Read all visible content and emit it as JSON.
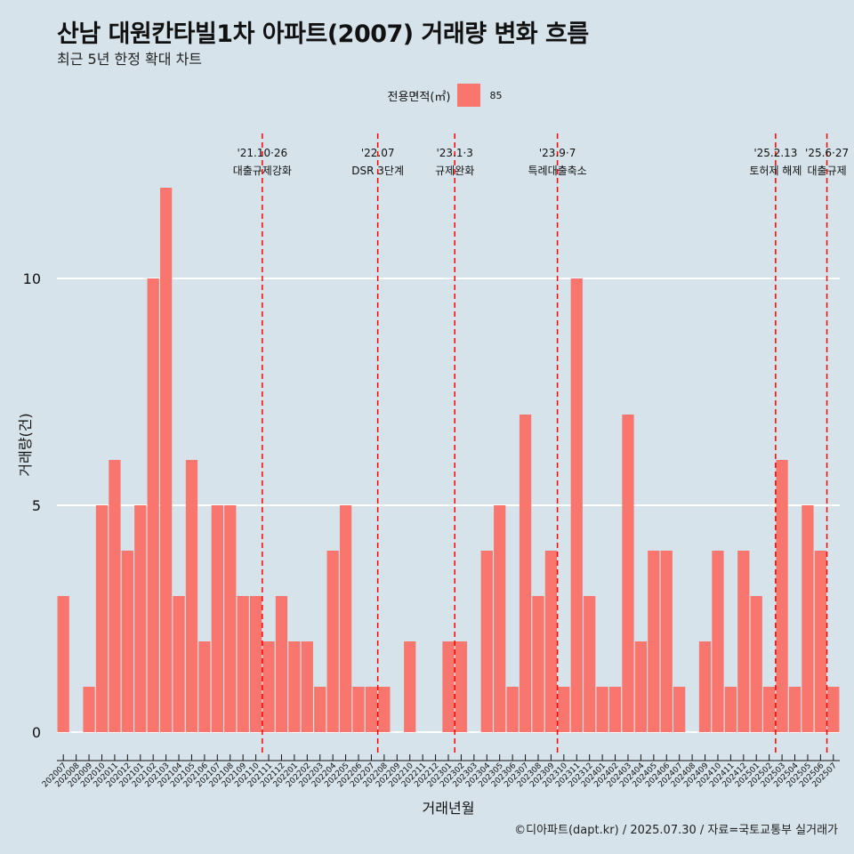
{
  "title": "산남 대원칸타빌1차 아파트(2007) 거래량 변화 흐름",
  "subtitle": "최근 5년 한정 확대 차트",
  "caption": "©디아파트(dapt.kr) / 2025.07.30 / 자료=국토교통부 실거래가",
  "colors": {
    "bar": "#f8766d",
    "background": "#d6e3ea",
    "event_line": "#ff0000",
    "grid": "#ffffff"
  },
  "chart_data": {
    "type": "bar",
    "xlabel": "거래년월",
    "ylabel": "거래량(건)",
    "ylim": [
      0,
      12.6
    ],
    "yticks": [
      0,
      5,
      10
    ],
    "grid": true,
    "legend_position": "top",
    "legend_title": "전용면적(㎡)",
    "categories": [
      "202007",
      "202008",
      "202009",
      "202010",
      "202011",
      "202012",
      "202101",
      "202102",
      "202103",
      "202104",
      "202105",
      "202106",
      "202107",
      "202108",
      "202109",
      "202110",
      "202111",
      "202112",
      "202201",
      "202202",
      "202203",
      "202204",
      "202205",
      "202206",
      "202207",
      "202208",
      "202209",
      "202210",
      "202211",
      "202212",
      "202301",
      "202302",
      "202303",
      "202304",
      "202305",
      "202306",
      "202307",
      "202308",
      "202309",
      "202310",
      "202311",
      "202312",
      "202401",
      "202402",
      "202403",
      "202404",
      "202405",
      "202406",
      "202407",
      "202408",
      "202409",
      "202410",
      "202411",
      "202412",
      "202501",
      "202502",
      "202503",
      "202504",
      "202505",
      "202506",
      "202507"
    ],
    "series": [
      {
        "name": "85",
        "values": [
          3,
          0,
          1,
          5,
          6,
          4,
          5,
          10,
          12,
          3,
          6,
          2,
          5,
          5,
          3,
          3,
          2,
          3,
          2,
          2,
          1,
          4,
          5,
          1,
          1,
          1,
          0,
          2,
          0,
          0,
          2,
          2,
          0,
          4,
          5,
          1,
          7,
          3,
          4,
          1,
          10,
          3,
          1,
          1,
          7,
          2,
          4,
          4,
          1,
          0,
          2,
          4,
          1,
          4,
          3,
          1,
          6,
          1,
          5,
          4,
          1
        ]
      }
    ],
    "events": [
      {
        "category": "202110",
        "date": "'21.10·26",
        "label": "대출규제강화"
      },
      {
        "category": "202207",
        "date": "'22.07",
        "label": "DSR 3단계"
      },
      {
        "category": "202301",
        "date": "'23.1·3",
        "label": "규제완화"
      },
      {
        "category": "202309",
        "date": "'23.9·7",
        "label": "특례대출축소"
      },
      {
        "category": "202502",
        "date": "'25.2.13",
        "label": "토허제 해제"
      },
      {
        "category": "202506",
        "date": "'25.6·27",
        "label": "대출규제"
      }
    ]
  }
}
